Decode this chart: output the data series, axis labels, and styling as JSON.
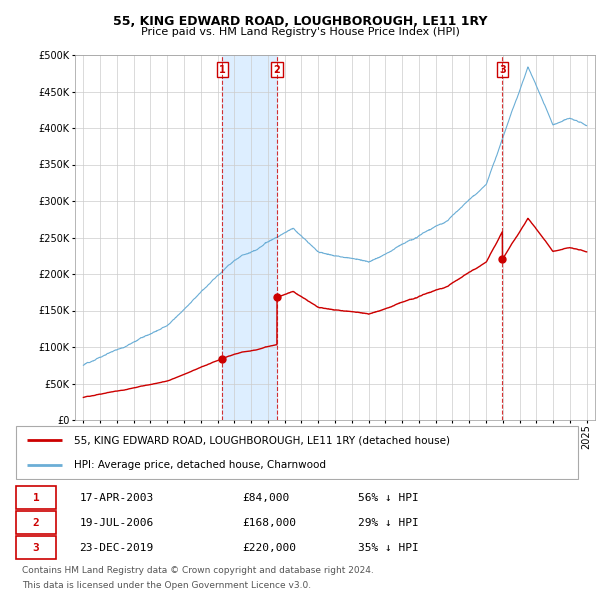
{
  "title": "55, KING EDWARD ROAD, LOUGHBOROUGH, LE11 1RY",
  "subtitle": "Price paid vs. HM Land Registry's House Price Index (HPI)",
  "hpi_label": "HPI: Average price, detached house, Charnwood",
  "property_label": "55, KING EDWARD ROAD, LOUGHBOROUGH, LE11 1RY (detached house)",
  "footer_line1": "Contains HM Land Registry data © Crown copyright and database right 2024.",
  "footer_line2": "This data is licensed under the Open Government Licence v3.0.",
  "sale_points": [
    {
      "date": 2003.29,
      "price": 84000,
      "label": "1",
      "date_str": "17-APR-2003",
      "price_str": "£84,000",
      "hpi_str": "56% ↓ HPI"
    },
    {
      "date": 2006.54,
      "price": 168000,
      "label": "2",
      "date_str": "19-JUL-2006",
      "price_str": "£168,000",
      "hpi_str": "29% ↓ HPI"
    },
    {
      "date": 2019.98,
      "price": 220000,
      "label": "3",
      "date_str": "23-DEC-2019",
      "price_str": "£220,000",
      "hpi_str": "35% ↓ HPI"
    }
  ],
  "hpi_color": "#6baed6",
  "property_color": "#cc0000",
  "shade_color": "#ddeeff",
  "background_color": "#ffffff",
  "ylim": [
    0,
    500000
  ],
  "yticks": [
    0,
    50000,
    100000,
    150000,
    200000,
    250000,
    300000,
    350000,
    400000,
    450000,
    500000
  ],
  "xlim_start": 1994.5,
  "xlim_end": 2025.5,
  "xtick_years": [
    1995,
    1996,
    1997,
    1998,
    1999,
    2000,
    2001,
    2002,
    2003,
    2004,
    2005,
    2006,
    2007,
    2008,
    2009,
    2010,
    2011,
    2012,
    2013,
    2014,
    2015,
    2016,
    2017,
    2018,
    2019,
    2020,
    2021,
    2022,
    2023,
    2024,
    2025
  ]
}
